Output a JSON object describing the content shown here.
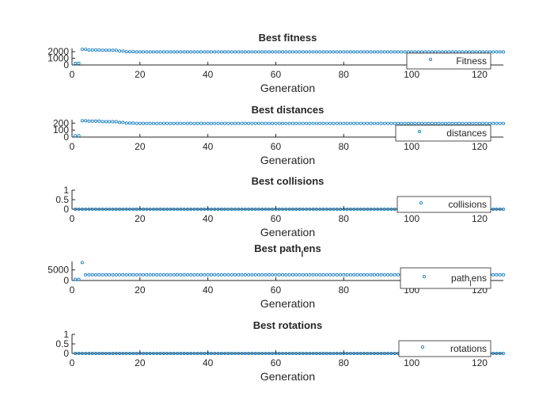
{
  "colors": {
    "marker": "#0072BD",
    "axis": "#262626",
    "legend_border": "#262626"
  },
  "chart_data": [
    {
      "type": "scatter",
      "title": "Best fitness",
      "xlabel": "Generation",
      "ylabel": "",
      "xlim": [
        0,
        127
      ],
      "ylim": [
        0,
        2500
      ],
      "xticks": [
        0,
        20,
        40,
        60,
        80,
        100,
        120
      ],
      "yticks": [
        0,
        1000,
        2000
      ],
      "legend": {
        "label": "Fitness",
        "location": "bottom-right"
      },
      "series": [
        {
          "name": "Fitness",
          "segments": [
            {
              "x_start": 1,
              "x_end": 2,
              "y": 250
            },
            {
              "x_start": 3,
              "x_end": 4,
              "y": 2350
            },
            {
              "x_start": 5,
              "x_end": 8,
              "y": 2250
            },
            {
              "x_start": 9,
              "x_end": 13,
              "y": 2220
            },
            {
              "x_start": 14,
              "x_end": 15,
              "y": 2100
            },
            {
              "x_start": 16,
              "x_end": 18,
              "y": 2000
            },
            {
              "x_start": 19,
              "x_end": 127,
              "y": 1960
            }
          ]
        }
      ]
    },
    {
      "type": "scatter",
      "title": "Best distances",
      "xlabel": "Generation",
      "ylabel": "",
      "xlim": [
        0,
        127
      ],
      "ylim": [
        0,
        250
      ],
      "xticks": [
        0,
        20,
        40,
        60,
        80,
        100,
        120
      ],
      "yticks": [
        0,
        100,
        200
      ],
      "legend": {
        "label": "distances",
        "location": "bottom-right"
      },
      "series": [
        {
          "name": "distances",
          "segments": [
            {
              "x_start": 1,
              "x_end": 2,
              "y": 20
            },
            {
              "x_start": 3,
              "x_end": 4,
              "y": 235
            },
            {
              "x_start": 5,
              "x_end": 8,
              "y": 228
            },
            {
              "x_start": 9,
              "x_end": 13,
              "y": 222
            },
            {
              "x_start": 14,
              "x_end": 15,
              "y": 210
            },
            {
              "x_start": 16,
              "x_end": 18,
              "y": 200
            },
            {
              "x_start": 19,
              "x_end": 127,
              "y": 196
            }
          ]
        }
      ]
    },
    {
      "type": "scatter",
      "title": "Best collisions",
      "xlabel": "Generation",
      "ylabel": "",
      "xlim": [
        0,
        127
      ],
      "ylim": [
        0,
        1
      ],
      "xticks": [
        0,
        20,
        40,
        60,
        80,
        100,
        120
      ],
      "yticks": [
        0,
        0.5,
        1
      ],
      "legend": {
        "label": "collisions",
        "location": "bottom-right"
      },
      "series": [
        {
          "name": "collisions",
          "segments": [
            {
              "x_start": 1,
              "x_end": 127,
              "y": 0
            }
          ]
        }
      ]
    },
    {
      "type": "scatter",
      "title": "Best path",
      "title_subscript": "l",
      "title_suffix": "ens",
      "xlabel": "Generation",
      "ylabel": "",
      "xlim": [
        0,
        127
      ],
      "ylim": [
        0,
        9000
      ],
      "xticks": [
        0,
        20,
        40,
        60,
        80,
        100,
        120
      ],
      "yticks": [
        0,
        5000
      ],
      "legend": {
        "label": "path",
        "label_subscript": "l",
        "label_suffix": "ens",
        "location": "bottom-right"
      },
      "series": [
        {
          "name": "path_lens",
          "segments": [
            {
              "x_start": 1,
              "x_end": 2,
              "y": 500
            },
            {
              "x_start": 3,
              "x_end": 3,
              "y": 8500
            },
            {
              "x_start": 4,
              "x_end": 127,
              "y": 2700
            }
          ]
        }
      ]
    },
    {
      "type": "scatter",
      "title": "Best rotations",
      "xlabel": "Generation",
      "ylabel": "",
      "xlim": [
        0,
        127
      ],
      "ylim": [
        0,
        1
      ],
      "xticks": [
        0,
        20,
        40,
        60,
        80,
        100,
        120
      ],
      "yticks": [
        0,
        0.5,
        1
      ],
      "legend": {
        "label": "rotations",
        "location": "bottom-right"
      },
      "series": [
        {
          "name": "rotations",
          "segments": [
            {
              "x_start": 1,
              "x_end": 127,
              "y": 0
            }
          ]
        }
      ]
    }
  ]
}
